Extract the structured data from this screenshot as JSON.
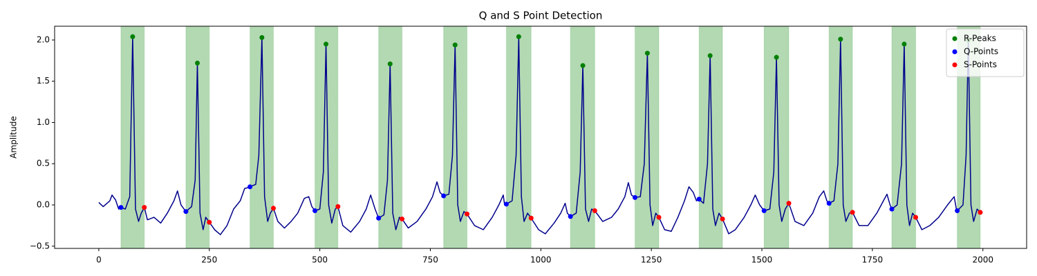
{
  "chart_data": {
    "type": "line",
    "title": "Q and S Point Detection",
    "ylabel": "Amplitude",
    "xlim": [
      -99.95,
      2098.95
    ],
    "ylim": [
      -0.527,
      2.167
    ],
    "xticks": [
      0,
      250,
      500,
      750,
      1000,
      1250,
      1500,
      1750,
      2000
    ],
    "yticks": [
      {
        "value": -0.5,
        "label": "−0.5"
      },
      {
        "value": 0,
        "label": "0.0"
      },
      {
        "value": 0.5,
        "label": "0.5"
      },
      {
        "value": 1,
        "label": "1.0"
      },
      {
        "value": 1.5,
        "label": "1.5"
      },
      {
        "value": 2,
        "label": "2.0"
      }
    ],
    "grid": false,
    "legend": "upper right",
    "span_color": "green",
    "line": {
      "color": "#00008b",
      "x": [
        0,
        10,
        25,
        30,
        38,
        45,
        50,
        60,
        70,
        76.6,
        83,
        90,
        96,
        103,
        110,
        125,
        140,
        155,
        170,
        178,
        186,
        197,
        210,
        218,
        223,
        229,
        236,
        242,
        250,
        262,
        275,
        290,
        305,
        320,
        330,
        338,
        342,
        355,
        362,
        369,
        375,
        382,
        388,
        395,
        405,
        420,
        435,
        450,
        465,
        475,
        482,
        489,
        500,
        508,
        514,
        520,
        527,
        535,
        541,
        552,
        570,
        590,
        605,
        615,
        625,
        633,
        645,
        653,
        659,
        665,
        672,
        680,
        686,
        700,
        720,
        740,
        755,
        765,
        772,
        780,
        792,
        800,
        806,
        812,
        818,
        826,
        833,
        850,
        870,
        890,
        905,
        915,
        918,
        922,
        935,
        944,
        950,
        956,
        962,
        970,
        978,
        995,
        1010,
        1030,
        1045,
        1055,
        1060,
        1067,
        1080,
        1089,
        1095,
        1101,
        1108,
        1115,
        1122,
        1140,
        1160,
        1175,
        1190,
        1198,
        1205,
        1213,
        1225,
        1234,
        1241,
        1247,
        1253,
        1260,
        1267,
        1280,
        1295,
        1310,
        1325,
        1335,
        1345,
        1352,
        1358,
        1368,
        1377,
        1383,
        1389,
        1395,
        1403,
        1411,
        1425,
        1440,
        1460,
        1475,
        1485,
        1495,
        1505,
        1518,
        1527,
        1533,
        1539,
        1545,
        1553,
        1561,
        1575,
        1595,
        1615,
        1630,
        1640,
        1647,
        1652,
        1663,
        1672,
        1678,
        1684,
        1690,
        1698,
        1705,
        1720,
        1740,
        1760,
        1775,
        1783,
        1790,
        1794,
        1806,
        1816,
        1822,
        1828,
        1834,
        1841,
        1848,
        1862,
        1880,
        1900,
        1920,
        1935,
        1940,
        1942,
        1955,
        1962,
        1967,
        1973,
        1979,
        1987,
        1994,
        1999
      ],
      "values": [
        0.03,
        -0.02,
        0.05,
        0.12,
        0.06,
        -0.05,
        -0.03,
        -0.05,
        0.1,
        2.04,
        -0.05,
        -0.2,
        -0.1,
        -0.03,
        -0.18,
        -0.15,
        -0.22,
        -0.1,
        0.05,
        0.17,
        0.0,
        -0.08,
        -0.02,
        0.3,
        1.72,
        -0.1,
        -0.3,
        -0.15,
        -0.21,
        -0.3,
        -0.36,
        -0.25,
        -0.05,
        0.05,
        0.2,
        0.21,
        0.22,
        0.25,
        0.6,
        2.03,
        0.1,
        -0.2,
        -0.1,
        -0.04,
        -0.2,
        -0.28,
        -0.2,
        -0.1,
        0.08,
        0.1,
        -0.02,
        -0.07,
        -0.05,
        0.4,
        1.95,
        0.0,
        -0.22,
        -0.05,
        -0.02,
        -0.25,
        -0.33,
        -0.2,
        -0.05,
        0.12,
        -0.05,
        -0.16,
        -0.12,
        0.3,
        1.71,
        -0.1,
        -0.3,
        -0.15,
        -0.17,
        -0.28,
        -0.2,
        -0.05,
        0.1,
        0.28,
        0.15,
        0.11,
        0.13,
        0.6,
        1.94,
        0.0,
        -0.2,
        -0.08,
        -0.11,
        -0.25,
        -0.3,
        -0.15,
        0.0,
        0.12,
        0.0,
        0.01,
        0.05,
        0.6,
        2.04,
        0.1,
        -0.2,
        -0.1,
        -0.16,
        -0.3,
        -0.35,
        -0.22,
        -0.1,
        0.02,
        -0.1,
        -0.14,
        -0.1,
        0.4,
        1.69,
        -0.05,
        -0.2,
        -0.05,
        -0.07,
        -0.2,
        -0.15,
        -0.05,
        0.1,
        0.27,
        0.12,
        0.09,
        0.1,
        0.5,
        1.84,
        0.0,
        -0.25,
        -0.1,
        -0.15,
        -0.3,
        -0.32,
        -0.15,
        0.05,
        0.22,
        0.15,
        0.05,
        0.07,
        0.02,
        0.5,
        1.81,
        -0.05,
        -0.25,
        -0.1,
        -0.17,
        -0.35,
        -0.3,
        -0.15,
        0.0,
        0.12,
        0.0,
        -0.07,
        -0.05,
        0.4,
        1.79,
        0.0,
        -0.2,
        -0.05,
        0.02,
        -0.2,
        -0.25,
        -0.1,
        0.1,
        0.17,
        0.05,
        0.02,
        0.05,
        0.5,
        2.01,
        0.0,
        -0.2,
        -0.1,
        -0.09,
        -0.25,
        -0.25,
        -0.1,
        0.05,
        0.13,
        0.0,
        -0.05,
        0.0,
        0.5,
        1.95,
        0.0,
        -0.25,
        -0.1,
        -0.15,
        -0.3,
        -0.25,
        -0.15,
        0.0,
        0.1,
        -0.05,
        -0.07,
        0.0,
        0.6,
        2.0,
        0.0,
        -0.2,
        -0.05,
        -0.09,
        -0.1
      ]
    },
    "series": [
      {
        "name": "R-Peaks",
        "color": "green",
        "x": [
          76.6,
          223,
          369,
          514,
          659,
          806,
          950,
          1095,
          1241,
          1383,
          1533,
          1678,
          1822,
          1967
        ],
        "values": [
          2.04,
          1.72,
          2.03,
          1.95,
          1.71,
          1.94,
          2.04,
          1.69,
          1.84,
          1.81,
          1.79,
          2.01,
          1.95,
          2.0
        ]
      },
      {
        "name": "Q-Points",
        "color": "blue",
        "x": [
          50,
          197,
          342,
          489,
          633,
          780,
          922,
          1067,
          1213,
          1358,
          1505,
          1652,
          1794,
          1942
        ],
        "values": [
          -0.03,
          -0.08,
          0.22,
          -0.07,
          -0.16,
          0.11,
          0.01,
          -0.14,
          0.09,
          0.07,
          -0.07,
          0.02,
          -0.05,
          -0.07
        ]
      },
      {
        "name": "S-Points",
        "color": "red",
        "x": [
          103,
          250,
          395,
          541,
          686,
          833,
          978,
          1122,
          1267,
          1411,
          1561,
          1705,
          1848,
          1994
        ],
        "values": [
          -0.03,
          -0.21,
          -0.04,
          -0.02,
          -0.17,
          -0.11,
          -0.16,
          -0.07,
          -0.15,
          -0.17,
          0.02,
          -0.09,
          -0.15,
          -0.09
        ]
      }
    ]
  }
}
